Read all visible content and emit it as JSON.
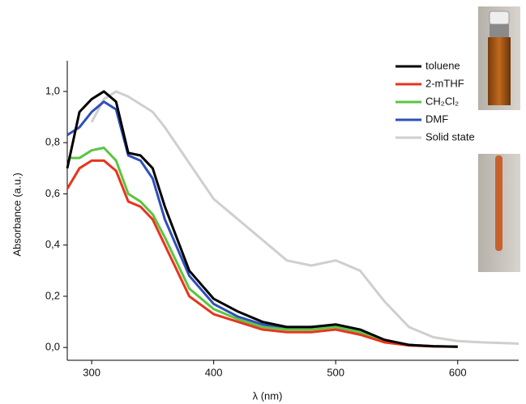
{
  "chart_data": {
    "type": "line",
    "xlabel": "λ (nm)",
    "ylabel": "Absorbance (a.u.)",
    "x": [
      280,
      290,
      300,
      310,
      320,
      330,
      340,
      350,
      360,
      380,
      400,
      420,
      440,
      460,
      480,
      500,
      520,
      540,
      560,
      580,
      600,
      620,
      650
    ],
    "series": [
      {
        "name": "toluene",
        "color": "#000000",
        "values": [
          0.7,
          0.92,
          0.97,
          1.0,
          0.96,
          0.76,
          0.75,
          0.7,
          0.55,
          0.3,
          0.19,
          0.14,
          0.1,
          0.08,
          0.08,
          0.09,
          0.07,
          0.03,
          0.01,
          0.005,
          0.003,
          null,
          null
        ]
      },
      {
        "name": "2-mTHF",
        "color": "#e8341c",
        "values": [
          0.62,
          0.7,
          0.73,
          0.73,
          0.69,
          0.57,
          0.55,
          0.5,
          0.4,
          0.2,
          0.13,
          0.1,
          0.07,
          0.06,
          0.06,
          0.07,
          0.05,
          0.02,
          0.008,
          0.004,
          0.003,
          null,
          null
        ]
      },
      {
        "name": "CH₂Cl₂",
        "color": "#5cc442",
        "values": [
          0.74,
          0.74,
          0.77,
          0.78,
          0.73,
          0.6,
          0.57,
          0.52,
          0.43,
          0.23,
          0.15,
          0.11,
          0.08,
          0.07,
          0.07,
          0.08,
          0.06,
          0.025,
          0.01,
          0.005,
          0.003,
          null,
          null
        ]
      },
      {
        "name": "DMF",
        "color": "#2f4fb8",
        "values": [
          0.83,
          0.86,
          0.92,
          0.96,
          0.93,
          0.75,
          0.73,
          0.66,
          0.5,
          0.28,
          0.17,
          0.12,
          0.09,
          0.075,
          0.08,
          0.08,
          0.06,
          0.025,
          0.01,
          0.005,
          null,
          null,
          null
        ]
      },
      {
        "name": "Solid state",
        "color": "#cfcfcf",
        "values": [
          null,
          null,
          0.88,
          0.97,
          1.0,
          0.98,
          0.95,
          0.92,
          0.86,
          0.72,
          0.58,
          0.5,
          0.42,
          0.34,
          0.32,
          0.34,
          0.3,
          0.18,
          0.08,
          0.04,
          0.025,
          0.02,
          0.015
        ]
      }
    ],
    "xlim": [
      280,
      650
    ],
    "xticks": [
      300,
      400,
      500,
      600
    ],
    "ylim": [
      -0.05,
      1.12
    ],
    "yticks": [
      {
        "value": 0,
        "label": "0,0"
      },
      {
        "value": 0.2,
        "label": "0,2"
      },
      {
        "value": 0.4,
        "label": "0,4"
      },
      {
        "value": 0.6,
        "label": "0,6"
      },
      {
        "value": 0.8,
        "label": "0,8"
      },
      {
        "value": 1.0,
        "label": "1,0"
      }
    ],
    "legend": "top-right"
  }
}
